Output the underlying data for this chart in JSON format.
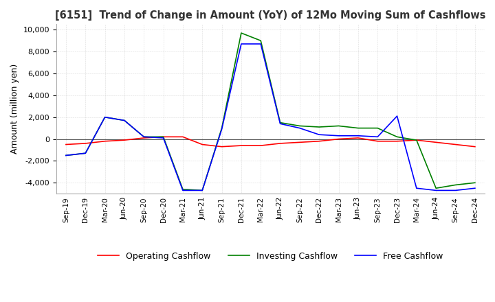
{
  "title": "[6151]  Trend of Change in Amount (YoY) of 12Mo Moving Sum of Cashflows",
  "ylabel": "Amount (million yen)",
  "ylim": [
    -5000,
    10500
  ],
  "yticks": [
    -4000,
    -2000,
    0,
    2000,
    4000,
    6000,
    8000,
    10000
  ],
  "x_labels": [
    "Sep-19",
    "Dec-19",
    "Mar-20",
    "Jun-20",
    "Sep-20",
    "Dec-20",
    "Mar-21",
    "Jun-21",
    "Sep-21",
    "Dec-21",
    "Mar-22",
    "Jun-22",
    "Sep-22",
    "Dec-22",
    "Mar-23",
    "Jun-23",
    "Sep-23",
    "Dec-23",
    "Mar-24",
    "Jun-24",
    "Sep-24",
    "Dec-24"
  ],
  "operating": [
    -500,
    -400,
    -200,
    -100,
    100,
    200,
    200,
    -500,
    -700,
    -600,
    -600,
    -400,
    -300,
    -200,
    0,
    100,
    -200,
    -200,
    -100,
    -300,
    -500,
    -700
  ],
  "investing": [
    -1500,
    -1300,
    2000,
    1700,
    200,
    200,
    -4600,
    -4700,
    1000,
    9700,
    9000,
    1500,
    1200,
    1100,
    1200,
    1000,
    1000,
    200,
    -100,
    -4500,
    -4200,
    -4000
  ],
  "free": [
    -1500,
    -1300,
    2000,
    1700,
    200,
    100,
    -4700,
    -4700,
    900,
    8700,
    8700,
    1400,
    1000,
    400,
    300,
    300,
    200,
    2100,
    -4500,
    -4700,
    -4700,
    -4500
  ],
  "operating_color": "#ff0000",
  "investing_color": "#008000",
  "free_color": "#0000ff",
  "bg_color": "#ffffff",
  "grid_color": "#aaaaaa",
  "title_color": "#333333",
  "legend_labels": [
    "Operating Cashflow",
    "Investing Cashflow",
    "Free Cashflow"
  ]
}
